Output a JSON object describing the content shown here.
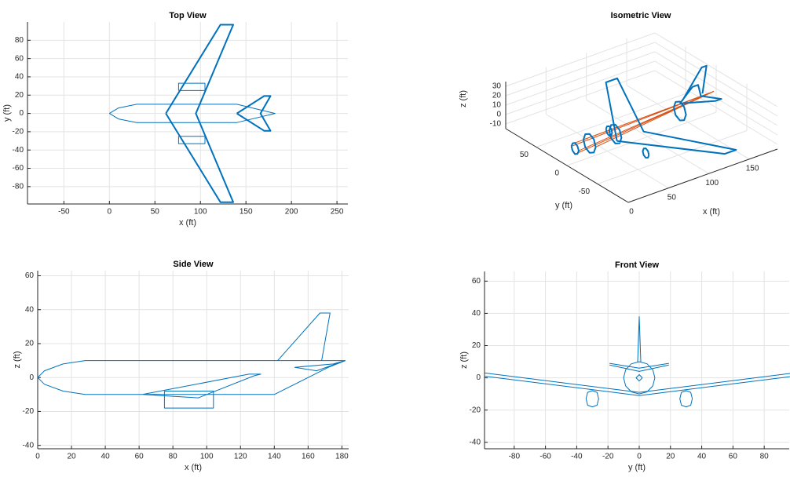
{
  "chart_data": [
    {
      "type": "line",
      "title": "Top View",
      "x_label": "x (ft)",
      "y_label": "y (ft)",
      "xlim": [
        -90,
        262
      ],
      "ylim": [
        -99,
        100
      ],
      "xticks": [
        -50,
        0,
        50,
        100,
        150,
        200,
        250
      ],
      "yticks": [
        -80,
        -60,
        -40,
        -20,
        0,
        20,
        40,
        60,
        80
      ],
      "grid": true,
      "series": [
        {
          "color": "#0072bd",
          "line_width": 1,
          "x": [
            0,
            10,
            30,
            140,
            182,
            140,
            30,
            10,
            0,
            null,
            76,
            105,
            105,
            76,
            76,
            null,
            76,
            105,
            105,
            76,
            76
          ],
          "values": [
            0,
            6,
            10,
            10,
            0,
            -10,
            -10,
            -6,
            0,
            null,
            25,
            25,
            33,
            33,
            25,
            null,
            -25,
            -25,
            -33,
            -33,
            -25
          ]
        },
        {
          "color": "#0072bd",
          "line_width": 2,
          "x": [
            62,
            122,
            136,
            95,
            136,
            122,
            62,
            null,
            140,
            170,
            177,
            166,
            177,
            170,
            140
          ],
          "values": [
            0,
            97,
            97,
            0,
            -97,
            -97,
            0,
            null,
            0,
            19,
            19,
            0,
            -19,
            -19,
            0
          ]
        }
      ]
    },
    {
      "type": "line3d",
      "title": "Isometric View",
      "x_label": "x (ft)",
      "y_label": "y (ft)",
      "z_label": "z (ft)",
      "xlim": [
        0,
        185
      ],
      "ylim": [
        -100,
        100
      ],
      "zlim": [
        -15,
        35
      ],
      "xticks": [
        0,
        50,
        100,
        150
      ],
      "yticks": [
        -50,
        0,
        50
      ],
      "zticks": [
        -10,
        0,
        10,
        20,
        30
      ],
      "grid": true,
      "series": [
        {
          "color": "#d95319",
          "line_width": 1,
          "x": [
            10,
            182,
            null,
            10,
            182,
            null,
            10,
            182,
            null,
            10,
            182,
            null,
            28,
            182,
            null,
            28,
            182
          ],
          "y": [
            6,
            0,
            null,
            -6,
            0,
            null,
            0,
            0,
            null,
            0,
            0,
            null,
            10,
            0,
            null,
            -10,
            0
          ],
          "z": [
            0,
            8,
            null,
            0,
            8,
            null,
            6,
            8,
            null,
            -6,
            8,
            null,
            0,
            8,
            null,
            0,
            8
          ]
        },
        {
          "color": "#0072bd",
          "line_width": 2,
          "x": [
            10,
            10,
            10,
            10,
            10,
            10,
            10,
            10,
            10,
            null,
            28,
            28,
            28,
            28,
            28,
            28,
            28,
            28,
            28,
            null,
            60,
            60,
            60,
            60,
            60,
            60,
            60,
            60,
            60,
            null,
            140,
            140,
            140,
            140,
            140,
            140,
            140,
            140,
            140,
            null,
            62,
            122,
            136,
            95,
            136,
            122,
            62,
            null,
            143,
            167,
            173,
            168,
            null,
            140,
            170,
            177,
            166,
            177,
            170,
            140,
            null,
            75,
            75,
            75,
            75,
            75,
            75,
            75,
            75,
            75,
            null,
            75,
            75,
            75,
            75,
            75,
            75,
            75,
            75,
            75
          ],
          "y": [
            6,
            4,
            0,
            -4,
            -6,
            -4,
            0,
            4,
            6,
            null,
            10,
            7,
            0,
            -7,
            -10,
            -7,
            0,
            7,
            10,
            null,
            10,
            7,
            0,
            -7,
            -10,
            -7,
            0,
            7,
            10,
            null,
            10,
            7,
            0,
            -7,
            -10,
            -7,
            0,
            7,
            10,
            null,
            0,
            97,
            97,
            0,
            -97,
            -97,
            0,
            null,
            0,
            0,
            0,
            0,
            null,
            0,
            19,
            19,
            0,
            -19,
            -19,
            0,
            null,
            35,
            33.5,
            30,
            26.5,
            25,
            26.5,
            30,
            33.5,
            35,
            null,
            -35,
            -33.5,
            -30,
            -26.5,
            -25,
            -26.5,
            -30,
            -33.5,
            -35
          ],
          "z": [
            0,
            4,
            6,
            4,
            0,
            -4,
            -6,
            -4,
            0,
            null,
            0,
            7,
            10,
            7,
            0,
            -7,
            -10,
            -7,
            0,
            null,
            0,
            7,
            10,
            7,
            0,
            -7,
            -10,
            -7,
            0,
            null,
            0,
            7,
            10,
            7,
            0,
            -7,
            -10,
            -7,
            0,
            null,
            -8,
            -2,
            -2,
            -8,
            -2,
            -2,
            -8,
            null,
            10,
            38,
            38,
            10,
            null,
            8,
            9,
            9,
            8,
            9,
            9,
            8,
            null,
            -13,
            -9.5,
            -8,
            -9.5,
            -13,
            -16.5,
            -18,
            -16.5,
            -13,
            null,
            -13,
            -9.5,
            -8,
            -9.5,
            -13,
            -16.5,
            -18,
            -16.5,
            -13
          ]
        }
      ]
    },
    {
      "type": "line",
      "title": "Side View",
      "x_label": "x (ft)",
      "y_label": "z (ft)",
      "xlim": [
        0,
        184
      ],
      "ylim": [
        -42,
        63
      ],
      "xticks": [
        0,
        20,
        40,
        60,
        80,
        100,
        120,
        140,
        160,
        180
      ],
      "yticks": [
        -40,
        -20,
        0,
        20,
        40,
        60
      ],
      "grid": true,
      "series": [
        {
          "color": "#0072bd",
          "line_width": 1,
          "x": [
            0,
            4,
            15,
            28,
            140,
            182,
            172,
            140,
            28,
            15,
            4,
            0,
            null,
            142,
            167,
            173,
            168,
            null,
            62,
            125,
            132,
            128,
            95,
            62,
            null,
            75,
            104,
            104,
            75,
            75,
            null,
            152,
            175,
            182,
            165,
            152
          ],
          "values": [
            0,
            4,
            8,
            10,
            10,
            10,
            6,
            -10,
            -10,
            -8,
            -4,
            0,
            null,
            10,
            38,
            38,
            10,
            null,
            -10,
            2,
            2,
            1,
            -12,
            -10,
            null,
            -8,
            -8,
            -18,
            -18,
            -8,
            null,
            6,
            8,
            10,
            4,
            6
          ]
        }
      ]
    },
    {
      "type": "line",
      "title": "Front View",
      "x_label": "y (ft)",
      "y_label": "z (ft)",
      "xlim": [
        -99,
        96
      ],
      "ylim": [
        -44,
        66
      ],
      "xticks": [
        -80,
        -60,
        -40,
        -20,
        0,
        20,
        40,
        60,
        80
      ],
      "yticks": [
        -40,
        -20,
        0,
        20,
        40,
        60
      ],
      "grid": true,
      "series": [
        {
          "color": "#0072bd",
          "line_width": 1,
          "x": [
            -99,
            0,
            99,
            null,
            -99,
            0,
            99,
            null,
            10,
            8.7,
            5,
            0,
            -5,
            -8.7,
            -10,
            -8.7,
            -5,
            0,
            5,
            8.7,
            10,
            null,
            2,
            0,
            -2,
            0,
            2,
            null,
            -1,
            0,
            1,
            null,
            -19,
            0,
            19,
            null,
            -19,
            0,
            19,
            null,
            34,
            33,
            30,
            27,
            26,
            27,
            30,
            33,
            34,
            null,
            -34,
            -33,
            -30,
            -27,
            -26,
            -27,
            -30,
            -33,
            -34
          ],
          "values": [
            3,
            -9,
            3,
            null,
            1,
            -11,
            1,
            null,
            0,
            5,
            8.7,
            10,
            8.7,
            5,
            0,
            -5,
            -8.7,
            -10,
            -8.7,
            -5,
            0,
            null,
            0,
            2,
            0,
            -2,
            0,
            null,
            10,
            38,
            10,
            null,
            9,
            6,
            9,
            null,
            8,
            4,
            8,
            null,
            -13,
            -9,
            -8,
            -9,
            -13,
            -17,
            -18,
            -17,
            -13,
            null,
            -13,
            -9,
            -8,
            -9,
            -13,
            -17,
            -18,
            -17,
            -13
          ]
        }
      ]
    }
  ]
}
